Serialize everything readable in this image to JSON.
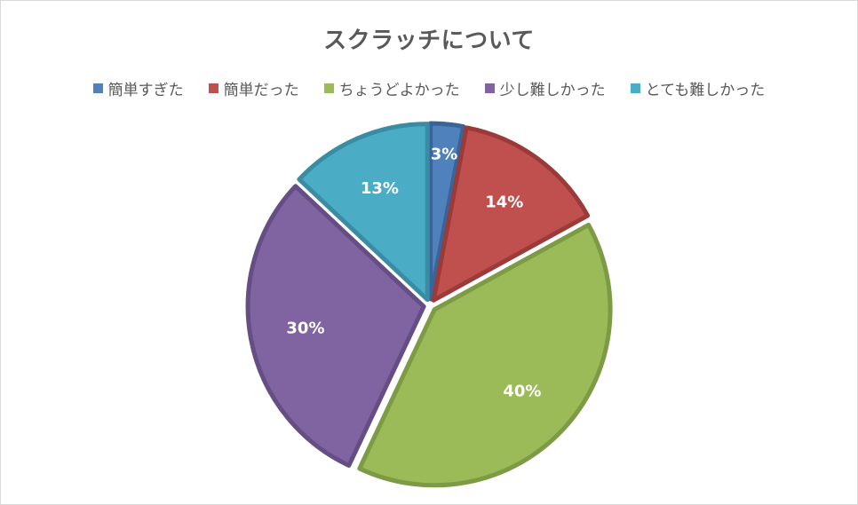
{
  "chart_data": {
    "type": "pie",
    "title": "スクラッチについて",
    "legend_position": "top",
    "categories": [
      "簡単すぎた",
      "簡単だった",
      "ちょうどよかった",
      "少し難しかった",
      "とても難しかった"
    ],
    "values": [
      3,
      14,
      40,
      30,
      13
    ],
    "labels": [
      "3%",
      "14%",
      "40%",
      "30%",
      "13%"
    ],
    "colors": [
      "#4F81BD",
      "#C0504D",
      "#9BBB59",
      "#8064A2",
      "#4BACC6"
    ],
    "border_colors": [
      "#3A6399",
      "#9A3B39",
      "#7D9A44",
      "#654E83",
      "#3A8CA2"
    ]
  }
}
